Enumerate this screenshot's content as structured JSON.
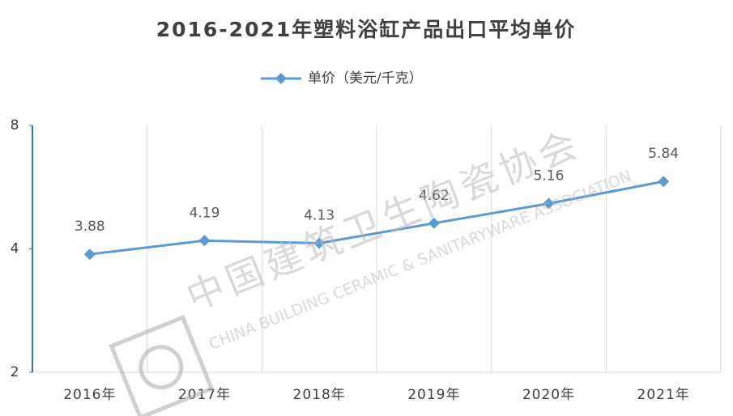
{
  "chart_data": {
    "type": "line",
    "title": "2016-2021年塑料浴缸产品出口平均单价",
    "categories": [
      "2016年",
      "2017年",
      "2018年",
      "2019年",
      "2020年",
      "2021年"
    ],
    "series": [
      {
        "name": "单价（美元/千克）",
        "color": "#5b9bd5",
        "values": [
          3.88,
          4.19,
          4.13,
          4.62,
          5.16,
          5.84
        ]
      }
    ],
    "ylim": [
      2,
      8
    ],
    "yticks": [
      2,
      4,
      8
    ],
    "log_scale": true,
    "grid": "vertical",
    "legend": "top",
    "watermark": {
      "title": "中国建筑卫生陶瓷协会",
      "subtitle": "CHINA BUILDING CERAMIC & SANITARYWARE ASSOCIATION"
    }
  }
}
